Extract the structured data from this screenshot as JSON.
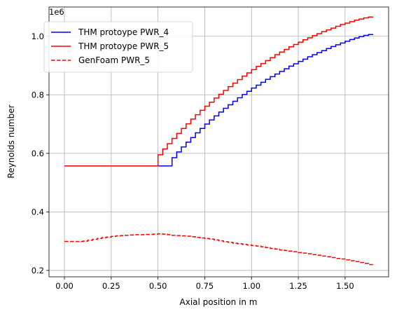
{
  "chart_data": {
    "type": "line",
    "title": "",
    "xlabel": "Axial position in m",
    "ylabel": "Reynolds number",
    "y_offset_label": "1e6",
    "xlim": [
      -0.0825,
      1.7325
    ],
    "ylim": [
      0.178,
      1.1
    ],
    "x_ticks": [
      0.0,
      0.25,
      0.5,
      0.75,
      1.0,
      1.25,
      1.5
    ],
    "x_tick_labels": [
      "0.00",
      "0.25",
      "0.50",
      "0.75",
      "1.00",
      "1.25",
      "1.50"
    ],
    "y_ticks": [
      0.2,
      0.4,
      0.6,
      0.8,
      1.0
    ],
    "y_tick_labels": [
      "0.2",
      "0.4",
      "0.6",
      "0.8",
      "1.0"
    ],
    "grid": true,
    "legend_position": "top-left",
    "step_plot": true,
    "series": [
      {
        "name": "THM protoype PWR_4",
        "color": "#0000ff",
        "linestyle": "solid",
        "x": [
          0.0,
          0.55,
          0.575,
          0.6,
          0.625,
          0.65,
          0.675,
          0.7,
          0.725,
          0.75,
          0.775,
          0.8,
          0.825,
          0.85,
          0.875,
          0.9,
          0.925,
          0.95,
          0.975,
          1.0,
          1.025,
          1.05,
          1.075,
          1.1,
          1.125,
          1.15,
          1.175,
          1.2,
          1.225,
          1.25,
          1.275,
          1.3,
          1.325,
          1.35,
          1.375,
          1.4,
          1.425,
          1.45,
          1.475,
          1.5,
          1.525,
          1.55,
          1.575,
          1.6,
          1.625,
          1.65
        ],
        "y": [
          0.557,
          0.557,
          0.585,
          0.605,
          0.622,
          0.638,
          0.654,
          0.67,
          0.685,
          0.7,
          0.714,
          0.728,
          0.741,
          0.754,
          0.766,
          0.778,
          0.79,
          0.801,
          0.812,
          0.823,
          0.833,
          0.843,
          0.853,
          0.862,
          0.871,
          0.88,
          0.889,
          0.898,
          0.906,
          0.914,
          0.922,
          0.93,
          0.937,
          0.944,
          0.951,
          0.958,
          0.965,
          0.971,
          0.977,
          0.983,
          0.989,
          0.994,
          0.999,
          1.003,
          1.006,
          1.006
        ]
      },
      {
        "name": "THM protoype PWR_5",
        "color": "#ff0000",
        "linestyle": "solid",
        "x": [
          0.0,
          0.475,
          0.5,
          0.525,
          0.55,
          0.575,
          0.6,
          0.625,
          0.65,
          0.675,
          0.7,
          0.725,
          0.75,
          0.775,
          0.8,
          0.825,
          0.85,
          0.875,
          0.9,
          0.925,
          0.95,
          0.975,
          1.0,
          1.025,
          1.05,
          1.075,
          1.1,
          1.125,
          1.15,
          1.175,
          1.2,
          1.225,
          1.25,
          1.275,
          1.3,
          1.325,
          1.35,
          1.375,
          1.4,
          1.425,
          1.45,
          1.475,
          1.5,
          1.525,
          1.55,
          1.575,
          1.6,
          1.625,
          1.65
        ],
        "y": [
          0.557,
          0.557,
          0.595,
          0.615,
          0.633,
          0.651,
          0.668,
          0.685,
          0.701,
          0.717,
          0.732,
          0.747,
          0.761,
          0.775,
          0.789,
          0.802,
          0.815,
          0.828,
          0.84,
          0.852,
          0.864,
          0.875,
          0.886,
          0.897,
          0.907,
          0.917,
          0.927,
          0.937,
          0.946,
          0.955,
          0.964,
          0.972,
          0.98,
          0.988,
          0.995,
          1.002,
          1.009,
          1.016,
          1.022,
          1.028,
          1.034,
          1.04,
          1.045,
          1.05,
          1.055,
          1.059,
          1.063,
          1.066,
          1.066
        ]
      },
      {
        "name": "GenFoam PWR_5",
        "color": "#ff0000",
        "linestyle": "dashed",
        "x": [
          0.0,
          0.025,
          0.05,
          0.075,
          0.1,
          0.125,
          0.15,
          0.175,
          0.2,
          0.225,
          0.25,
          0.275,
          0.3,
          0.325,
          0.35,
          0.375,
          0.4,
          0.425,
          0.45,
          0.475,
          0.5,
          0.525,
          0.55,
          0.575,
          0.6,
          0.625,
          0.65,
          0.675,
          0.7,
          0.725,
          0.75,
          0.775,
          0.8,
          0.825,
          0.85,
          0.875,
          0.9,
          0.925,
          0.95,
          0.975,
          1.0,
          1.025,
          1.05,
          1.075,
          1.1,
          1.125,
          1.15,
          1.175,
          1.2,
          1.225,
          1.25,
          1.275,
          1.3,
          1.325,
          1.35,
          1.375,
          1.4,
          1.425,
          1.45,
          1.475,
          1.5,
          1.525,
          1.55,
          1.575,
          1.6,
          1.625,
          1.65
        ],
        "y": [
          0.299,
          0.299,
          0.299,
          0.299,
          0.3,
          0.303,
          0.306,
          0.309,
          0.312,
          0.314,
          0.316,
          0.318,
          0.319,
          0.32,
          0.321,
          0.322,
          0.322,
          0.323,
          0.323,
          0.324,
          0.325,
          0.324,
          0.322,
          0.32,
          0.319,
          0.318,
          0.317,
          0.315,
          0.313,
          0.311,
          0.309,
          0.307,
          0.304,
          0.301,
          0.298,
          0.296,
          0.293,
          0.291,
          0.289,
          0.287,
          0.285,
          0.283,
          0.281,
          0.278,
          0.275,
          0.273,
          0.27,
          0.268,
          0.266,
          0.264,
          0.261,
          0.259,
          0.257,
          0.254,
          0.252,
          0.249,
          0.247,
          0.244,
          0.241,
          0.239,
          0.236,
          0.233,
          0.23,
          0.227,
          0.224,
          0.22,
          0.22
        ]
      }
    ]
  }
}
